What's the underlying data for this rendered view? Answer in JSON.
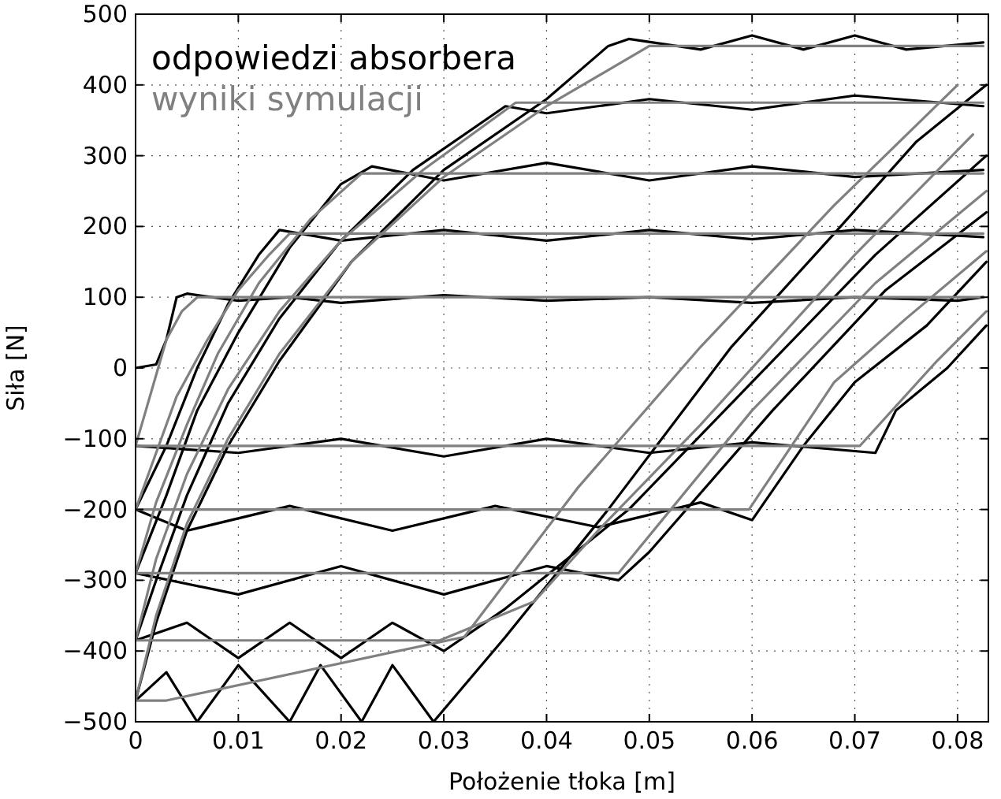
{
  "chart_data": {
    "type": "line",
    "xlabel": "Położenie tłoka [m]",
    "ylabel": "Siła [N]",
    "xlim": [
      0,
      0.083
    ],
    "ylim": [
      -500,
      500
    ],
    "xticks": [
      0,
      0.01,
      0.02,
      0.03,
      0.04,
      0.05,
      0.06,
      0.07,
      0.08
    ],
    "yticks": [
      {
        "value": -500,
        "label": "−500"
      },
      {
        "value": -400,
        "label": "−400"
      },
      {
        "value": -300,
        "label": "−300"
      },
      {
        "value": -200,
        "label": "−200"
      },
      {
        "value": -100,
        "label": "−100"
      },
      0,
      100,
      200,
      300,
      400,
      500
    ],
    "grid": true,
    "legend": "top left",
    "line_style": "solid",
    "marker": "none",
    "series": [
      {
        "name": "odpowiedzi absorbera",
        "color": "#000000",
        "x": [
          0,
          0.002,
          0.003,
          0.004,
          0.005,
          0.01,
          0.015,
          0.02,
          0.03,
          0.04,
          0.05,
          0.06,
          0.07,
          0.08,
          0.0825
        ],
        "values": [
          0,
          5,
          40,
          100,
          105,
          95,
          100,
          92,
          103,
          95,
          100,
          92,
          100,
          95,
          100
        ]
      },
      {
        "color": "#000000",
        "x": [
          0,
          0.01,
          0.02,
          0.03,
          0.04,
          0.05,
          0.06,
          0.072,
          0.074,
          0.079,
          0.0828
        ],
        "values": [
          -110,
          -120,
          -100,
          -125,
          -100,
          -120,
          -105,
          -120,
          -60,
          0,
          60
        ]
      },
      {
        "color": "#000000",
        "x": [
          0,
          0.003,
          0.006,
          0.009,
          0.012,
          0.014,
          0.02,
          0.03,
          0.04,
          0.05,
          0.06,
          0.07,
          0.0825
        ],
        "values": [
          -200,
          -110,
          0,
          90,
          160,
          195,
          180,
          195,
          180,
          195,
          182,
          195,
          185
        ]
      },
      {
        "color": "#000000",
        "x": [
          0,
          0.005,
          0.015,
          0.025,
          0.035,
          0.045,
          0.055,
          0.06,
          0.065,
          0.07,
          0.077,
          0.0828
        ],
        "values": [
          -200,
          -230,
          -195,
          -230,
          -195,
          -225,
          -190,
          -215,
          -110,
          -20,
          60,
          150
        ]
      },
      {
        "color": "#000000",
        "x": [
          0,
          0.003,
          0.006,
          0.01,
          0.015,
          0.02,
          0.023,
          0.03,
          0.04,
          0.05,
          0.06,
          0.07,
          0.0825
        ],
        "values": [
          -290,
          -180,
          -60,
          50,
          170,
          260,
          285,
          265,
          290,
          265,
          285,
          270,
          280
        ]
      },
      {
        "color": "#000000",
        "x": [
          0,
          0.01,
          0.02,
          0.03,
          0.04,
          0.047,
          0.05,
          0.062,
          0.073,
          0.0828
        ],
        "values": [
          -290,
          -320,
          -280,
          -320,
          -280,
          -300,
          -260,
          -60,
          110,
          220
        ]
      },
      {
        "color": "#000000",
        "x": [
          0,
          0.002,
          0.005,
          0.009,
          0.014,
          0.02,
          0.027,
          0.036,
          0.04,
          0.05,
          0.06,
          0.07,
          0.0825
        ],
        "values": [
          -385,
          -300,
          -180,
          -50,
          70,
          180,
          280,
          370,
          360,
          380,
          365,
          385,
          370
        ]
      },
      {
        "color": "#000000",
        "x": [
          0,
          0.005,
          0.01,
          0.015,
          0.02,
          0.025,
          0.03,
          0.036,
          0.048,
          0.06,
          0.072,
          0.0828
        ],
        "values": [
          -385,
          -360,
          -410,
          -360,
          -410,
          -360,
          -400,
          -340,
          -200,
          -20,
          160,
          300
        ]
      },
      {
        "color": "#000000",
        "x": [
          0,
          0.002,
          0.005,
          0.009,
          0.014,
          0.021,
          0.03,
          0.04,
          0.046,
          0.048,
          0.055,
          0.06,
          0.065,
          0.07,
          0.075,
          0.0825
        ],
        "values": [
          -470,
          -360,
          -230,
          -110,
          10,
          150,
          280,
          380,
          455,
          465,
          450,
          470,
          450,
          470,
          450,
          460
        ]
      },
      {
        "color": "#000000",
        "x": [
          0,
          0.003,
          0.006,
          0.01,
          0.015,
          0.018,
          0.022,
          0.025,
          0.029,
          0.036,
          0.046,
          0.058,
          0.068,
          0.076,
          0.0828
        ],
        "values": [
          -470,
          -430,
          -500,
          -420,
          -500,
          -420,
          -500,
          -420,
          -500,
          -380,
          -200,
          30,
          190,
          320,
          400
        ]
      },
      {
        "name": "wyniki symulacji",
        "color": "#808080",
        "x": [
          0,
          0.001,
          0.002,
          0.003,
          0.0045,
          0.006,
          0.0825
        ],
        "values": [
          -110,
          -60,
          -10,
          40,
          80,
          100,
          100
        ]
      },
      {
        "color": "#808080",
        "x": [
          0,
          0.0705,
          0.078,
          0.0828
        ],
        "values": [
          -110,
          -110,
          10,
          80
        ]
      },
      {
        "color": "#808080",
        "x": [
          0,
          0.002,
          0.004,
          0.007,
          0.01,
          0.013,
          0.015,
          0.0825
        ],
        "values": [
          -200,
          -120,
          -40,
          40,
          110,
          160,
          190,
          190
        ]
      },
      {
        "color": "#808080",
        "x": [
          0,
          0.0597,
          0.068,
          0.075,
          0.0828
        ],
        "values": [
          -200,
          -200,
          -20,
          70,
          165
        ]
      },
      {
        "color": "#808080",
        "x": [
          0,
          0.002,
          0.005,
          0.008,
          0.012,
          0.017,
          0.022,
          0.0825
        ],
        "values": [
          -290,
          -190,
          -80,
          20,
          120,
          210,
          275,
          275
        ]
      },
      {
        "color": "#808080",
        "x": [
          0,
          0.047,
          0.06,
          0.072,
          0.0828
        ],
        "values": [
          -290,
          -290,
          -60,
          120,
          250
        ]
      },
      {
        "color": "#808080",
        "x": [
          0,
          0.002,
          0.005,
          0.009,
          0.014,
          0.02,
          0.028,
          0.037,
          0.0825
        ],
        "values": [
          -385,
          -270,
          -150,
          -30,
          80,
          180,
          280,
          375,
          375
        ]
      },
      {
        "color": "#808080",
        "x": [
          0,
          0.0296,
          0.0388,
          0.045,
          0.055,
          0.07,
          0.0815
        ],
        "values": [
          -385,
          -385,
          -330,
          -230,
          -80,
          160,
          330
        ]
      },
      {
        "color": "#808080",
        "x": [
          0,
          0.002,
          0.005,
          0.009,
          0.014,
          0.021,
          0.03,
          0.04,
          0.05,
          0.0825
        ],
        "values": [
          -470,
          -350,
          -220,
          -100,
          20,
          150,
          270,
          370,
          455,
          455
        ]
      },
      {
        "color": "#808080",
        "x": [
          0,
          0.003,
          0.032,
          0.043,
          0.055,
          0.068,
          0.08
        ],
        "values": [
          -470,
          -470,
          -380,
          -170,
          30,
          230,
          400
        ]
      }
    ]
  }
}
